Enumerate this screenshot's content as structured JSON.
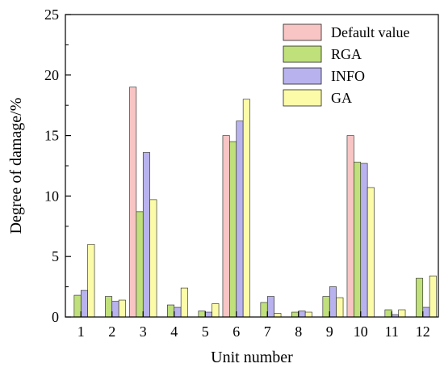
{
  "chart_data": {
    "type": "bar",
    "title": "",
    "xlabel": "Unit number",
    "ylabel": "Degree of damage/%",
    "categories": [
      "1",
      "2",
      "3",
      "4",
      "5",
      "6",
      "7",
      "8",
      "9",
      "10",
      "11",
      "12"
    ],
    "ylim": [
      0,
      25
    ],
    "yticks": [
      "0",
      "5",
      "10",
      "15",
      "20",
      "25"
    ],
    "grid": false,
    "legend_position": "top-right",
    "series": [
      {
        "name": "Default value",
        "color": "#f8c4c4",
        "values": [
          0,
          0,
          19.0,
          0,
          0,
          15.0,
          0,
          0,
          0,
          15.0,
          0,
          0
        ]
      },
      {
        "name": "RGA",
        "color": "#bfe07a",
        "values": [
          1.8,
          1.7,
          8.7,
          1.0,
          0.5,
          14.5,
          1.2,
          0.4,
          1.7,
          12.8,
          0.6,
          3.2
        ]
      },
      {
        "name": "INFO",
        "color": "#b8b2ee",
        "values": [
          2.2,
          1.3,
          13.6,
          0.8,
          0.4,
          16.2,
          1.7,
          0.5,
          2.5,
          12.7,
          0.2,
          0.8
        ]
      },
      {
        "name": "GA",
        "color": "#fbfba8",
        "values": [
          6.0,
          1.4,
          9.7,
          2.4,
          1.1,
          18.0,
          0.3,
          0.4,
          1.6,
          10.7,
          0.6,
          3.4
        ]
      }
    ]
  }
}
